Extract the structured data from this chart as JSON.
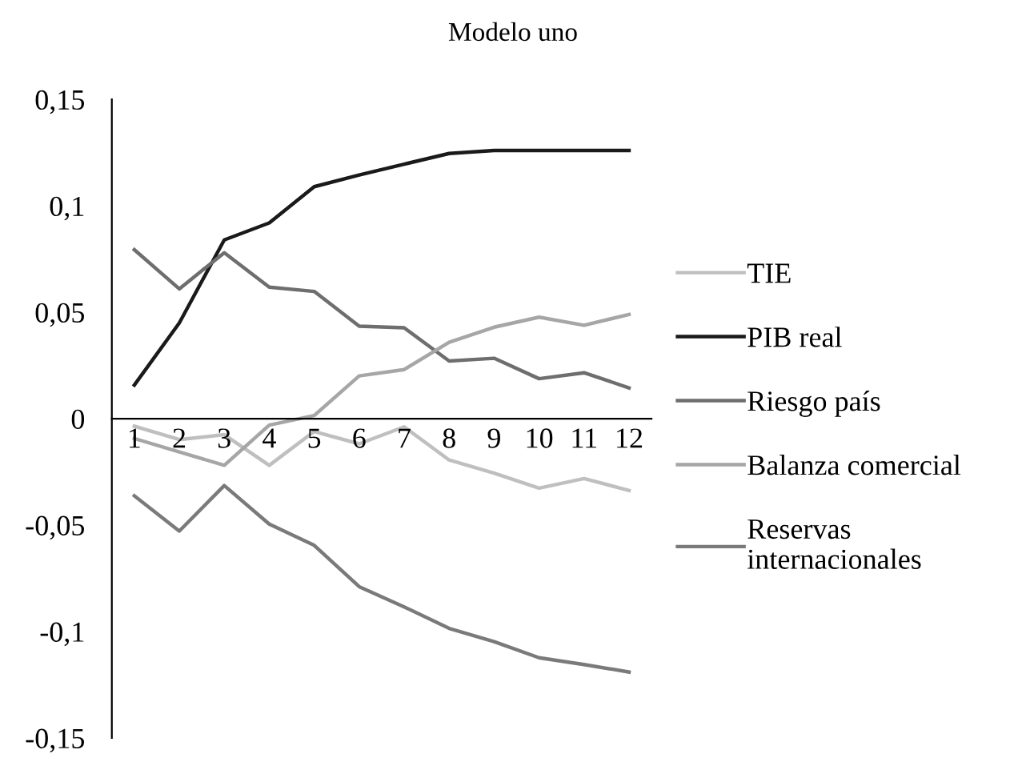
{
  "chart_data": {
    "type": "line",
    "title": "Modelo uno",
    "categories": [
      "1",
      "2",
      "3",
      "4",
      "5",
      "6",
      "7",
      "8",
      "9",
      "10",
      "11",
      "12"
    ],
    "series": [
      {
        "name": "TIE",
        "color": "#bfbfbf",
        "values": [
          -0.0035,
          -0.0098,
          -0.0075,
          -0.0219,
          -0.006,
          -0.0118,
          -0.0038,
          -0.0194,
          -0.0256,
          -0.0326,
          -0.0281,
          -0.0337
        ]
      },
      {
        "name": "PIB real",
        "color": "#1a1a1a",
        "values": [
          0.0158,
          0.045,
          0.084,
          0.092,
          0.109,
          0.1145,
          0.1196,
          0.1246,
          0.126,
          0.126,
          0.126,
          0.126
        ]
      },
      {
        "name": "Riesgo país",
        "color": "#6e6e6e",
        "values": [
          0.0794,
          0.061,
          0.078,
          0.0618,
          0.0598,
          0.0435,
          0.0427,
          0.0271,
          0.0284,
          0.0188,
          0.0216,
          0.0145
        ]
      },
      {
        "name": "Balanza comercial",
        "color": "#a6a6a6",
        "values": [
          -0.0093,
          -0.0156,
          -0.0219,
          -0.003,
          0.0015,
          0.0201,
          0.0231,
          0.0359,
          0.043,
          0.0477,
          0.0439,
          0.049
        ]
      },
      {
        "name": "Reservas\ninternacionales",
        "color": "#7a7a7a",
        "values": [
          -0.0362,
          -0.0528,
          -0.0314,
          -0.0495,
          -0.0595,
          -0.0789,
          -0.0884,
          -0.0985,
          -0.1047,
          -0.1123,
          -0.1155,
          -0.119
        ]
      }
    ],
    "ylim": [
      -0.15,
      0.15
    ],
    "yticks": [
      {
        "value": -0.15,
        "label": "-0,15"
      },
      {
        "value": -0.1,
        "label": "-0,1"
      },
      {
        "value": -0.05,
        "label": "-0,05"
      },
      {
        "value": 0,
        "label": "0"
      },
      {
        "value": 0.05,
        "label": "0,05"
      },
      {
        "value": 0.1,
        "label": "0,1"
      },
      {
        "value": 0.15,
        "label": "0,15"
      }
    ],
    "grid": false,
    "legend": "right",
    "marker": "none",
    "line_style": "solid"
  }
}
